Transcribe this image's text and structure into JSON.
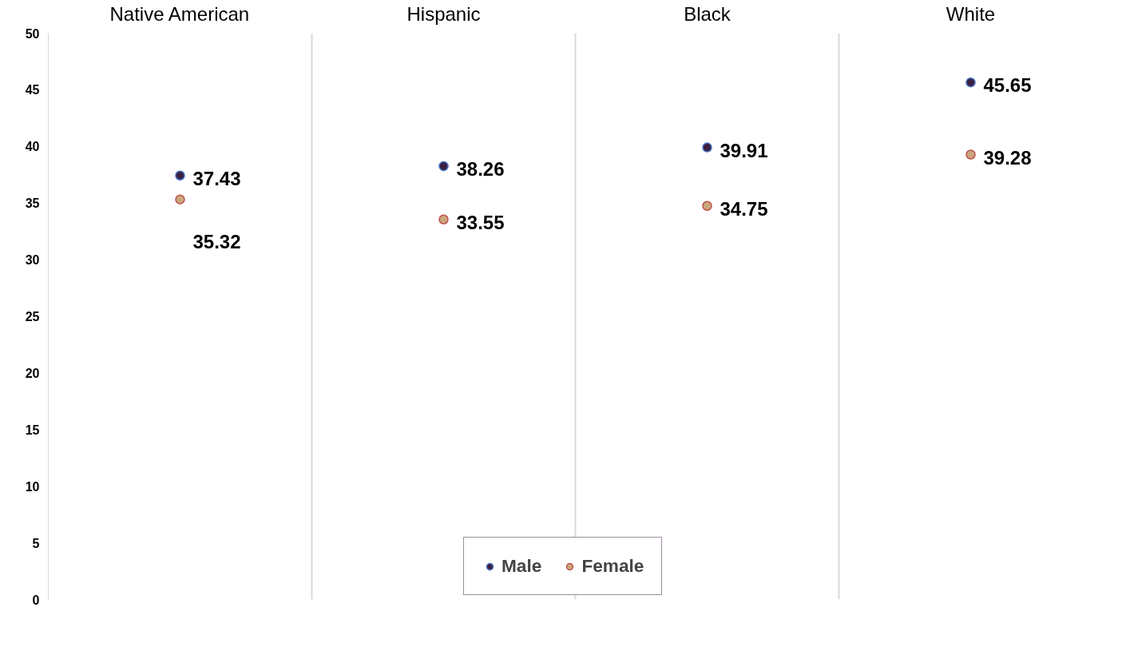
{
  "chart_data": {
    "type": "scatter",
    "categories": [
      "Native American",
      "Hispanic",
      "Black",
      "White"
    ],
    "series": [
      {
        "name": "Male",
        "color": "#3b2040",
        "values": [
          37.43,
          38.26,
          39.91,
          45.65
        ]
      },
      {
        "name": "Female",
        "color": "#c9a77c",
        "values": [
          35.32,
          33.55,
          34.75,
          39.28
        ]
      }
    ],
    "ylim": [
      0,
      50
    ],
    "yticks": [
      0,
      5,
      10,
      15,
      20,
      25,
      30,
      35,
      40,
      45,
      50
    ],
    "grid": "x",
    "legend": "bottom",
    "marker": "circle",
    "data_labels": true
  }
}
